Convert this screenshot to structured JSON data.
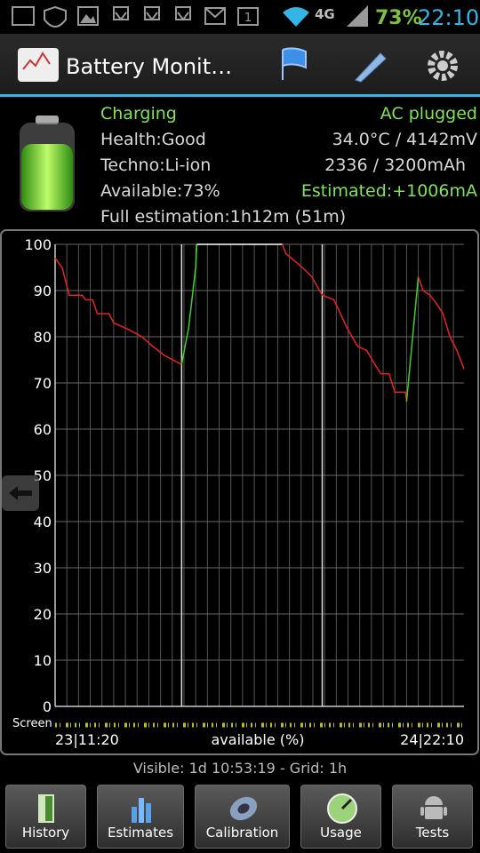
{
  "status_bar": {
    "network": "4G",
    "sim_badge": "1",
    "battery": "73%",
    "time": "22:10"
  },
  "action_bar": {
    "title": "Battery Monit…"
  },
  "info": {
    "state": "Charging",
    "plug": "AC plugged",
    "health": "Health:Good",
    "temp_voltage": "34.0°C / 4142mV",
    "techno": "Techno:Li-ion",
    "capacity": "2336 / 3200mAh",
    "available": "Available:73%",
    "estimated": "Estimated:+1006mA",
    "full_estimation": "Full estimation:1h12m (51m)"
  },
  "chart_data": {
    "type": "line",
    "y_label": "available (%)",
    "strip_label": "Screen",
    "x_start_label": "23|11:20",
    "x_end_label": "24|22:10",
    "xlim": [
      0,
      34.9
    ],
    "xgrid_step": 1,
    "ylim": [
      0,
      100
    ],
    "yticks": [
      0,
      10,
      20,
      30,
      40,
      50,
      60,
      70,
      80,
      90,
      100
    ],
    "grid": true,
    "markers": [
      10.8,
      22.8
    ],
    "series": [
      {
        "color": "#e8231c",
        "x": [
          0,
          0.6,
          1.2,
          2.3,
          2.6,
          3.2,
          3.6,
          4.6,
          5.0,
          5.9,
          6.7,
          7.4,
          8.3,
          9.3,
          10.8
        ],
        "values": [
          97,
          95,
          89,
          89,
          88,
          88,
          85,
          85,
          83,
          82,
          81,
          80,
          78,
          76,
          74
        ]
      },
      {
        "color": "#3fcf2a",
        "x": [
          10.8,
          11.4,
          12.0,
          12.1
        ],
        "values": [
          74,
          82,
          95,
          100
        ]
      },
      {
        "color": "#ffffff",
        "x": [
          12.1,
          19.4
        ],
        "values": [
          100,
          100
        ]
      },
      {
        "color": "#e8231c",
        "x": [
          19.4,
          19.7,
          21.1,
          21.9,
          22.8,
          23.8,
          24.9,
          25.8,
          26.6,
          27.3,
          27.8,
          28.5,
          29.0,
          29.9,
          30.0
        ],
        "values": [
          100,
          98,
          95,
          93,
          89,
          88,
          82,
          78,
          77,
          74,
          72,
          72,
          68,
          68,
          66
        ]
      },
      {
        "color": "#3fcf2a",
        "x": [
          30.0,
          31.0
        ],
        "values": [
          66,
          93
        ]
      },
      {
        "color": "#e8231c",
        "x": [
          31.0,
          31.4,
          32.0,
          32.6,
          33.1,
          33.7,
          34.3,
          34.9
        ],
        "values": [
          93,
          90,
          89,
          87,
          85,
          80,
          77,
          73
        ]
      }
    ]
  },
  "footer": {
    "visible": "Visible: 1d 10:53:19 - Grid: 1h"
  },
  "buttons": [
    "History",
    "Estimates",
    "Calibration",
    "Usage",
    "Tests"
  ]
}
